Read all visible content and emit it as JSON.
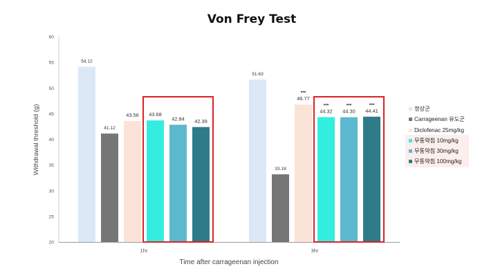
{
  "chart_data": {
    "type": "bar",
    "title": "Von Frey Test",
    "xlabel": "Time after carrageenan injection",
    "ylabel": "Withdrawal threshold  (g)",
    "ylim": [
      20,
      60
    ],
    "yticks": [
      "20",
      "25",
      "30",
      "35",
      "40",
      "45",
      "50",
      "55",
      "60"
    ],
    "categories": [
      "1hr",
      "3hr"
    ],
    "grid": false,
    "legend_position": "right",
    "series": [
      {
        "name": "정상군",
        "color": "#dbe8f7",
        "values": [
          54.12,
          51.63
        ],
        "labels": [
          "54.12",
          "51.63"
        ],
        "marks": [
          "",
          ""
        ]
      },
      {
        "name": "Carrageenan 유도군",
        "color": "#767676",
        "values": [
          41.12,
          33.18
        ],
        "labels": [
          "41.12",
          "33.18"
        ],
        "marks": [
          "",
          ""
        ]
      },
      {
        "name": "Diclofenac 25mg/kg",
        "color": "#fce3d8",
        "values": [
          43.56,
          46.77
        ],
        "labels": [
          "43.56",
          "46.77"
        ],
        "marks": [
          "",
          "***"
        ]
      },
      {
        "name": "무통약침 10mg/kg",
        "color": "#33ede0",
        "values": [
          43.68,
          44.32
        ],
        "labels": [
          "43.68",
          "44.32"
        ],
        "marks": [
          "",
          "***"
        ]
      },
      {
        "name": "무통약침 30mg/kg",
        "color": "#5cb8ce",
        "values": [
          42.84,
          44.3
        ],
        "labels": [
          "42.84",
          "44.30"
        ],
        "marks": [
          "",
          "***"
        ]
      },
      {
        "name": "무통약침 100mg/kg",
        "color": "#2f7b89",
        "values": [
          42.39,
          44.41
        ],
        "labels": [
          "42.39",
          "44.41"
        ],
        "marks": [
          "",
          "***"
        ]
      }
    ],
    "highlight_color": "#dd1f26"
  }
}
